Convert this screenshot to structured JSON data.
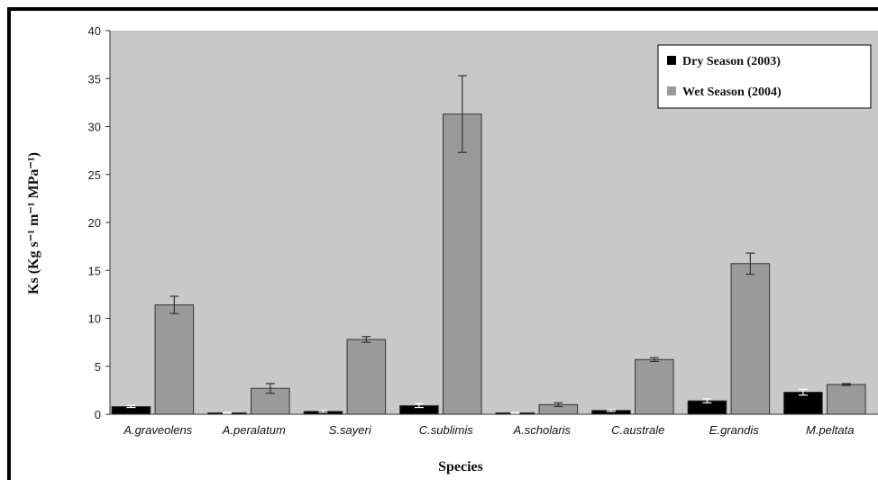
{
  "chart_data": {
    "type": "bar",
    "title": "",
    "xlabel": "Species",
    "ylabel": "Ks  (Kg s⁻¹ m⁻¹ MPa⁻¹)",
    "ylim": [
      0,
      40
    ],
    "yticks": [
      0,
      5,
      10,
      15,
      20,
      25,
      30,
      35,
      40
    ],
    "grid": false,
    "legend_position": "top-right",
    "categories": [
      "A.graveolens",
      "A.peralatum",
      "S.sayeri",
      "C.sublimis",
      "A.scholaris",
      "C.australe",
      "E.grandis",
      "M.peltata"
    ],
    "series": [
      {
        "name": "Dry Season (2003)",
        "color": "#000000",
        "values": [
          0.8,
          0.15,
          0.3,
          0.9,
          0.15,
          0.4,
          1.4,
          2.3
        ],
        "errors": [
          0.1,
          0.05,
          0.1,
          0.2,
          0.05,
          0.1,
          0.2,
          0.3
        ]
      },
      {
        "name": "Wet Season (2004)",
        "color": "#9a9a9a",
        "values": [
          11.4,
          2.7,
          7.8,
          31.3,
          1.0,
          5.7,
          15.7,
          3.1
        ],
        "errors": [
          0.9,
          0.5,
          0.3,
          4.0,
          0.2,
          0.2,
          1.1,
          0.1
        ]
      }
    ]
  }
}
